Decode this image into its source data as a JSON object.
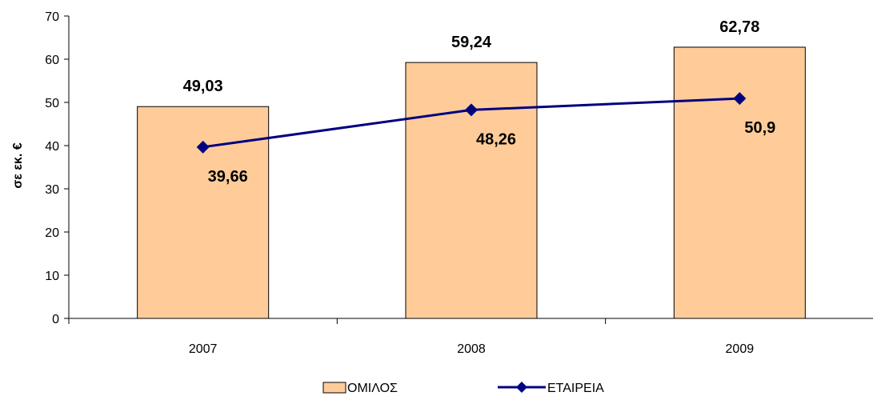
{
  "chart_data": {
    "type": "bar",
    "categories": [
      "2007",
      "2008",
      "2009"
    ],
    "series": [
      {
        "name": "ΟΜΙΛΟΣ",
        "kind": "bar",
        "values": [
          49.03,
          59.24,
          62.78
        ],
        "labels": [
          "49,03",
          "59,24",
          "62,78"
        ],
        "color": "#FFCC99"
      },
      {
        "name": "ΕΤΑΙΡΕΙΑ",
        "kind": "line",
        "values": [
          39.66,
          48.26,
          50.9
        ],
        "labels": [
          "39,66",
          "48,26",
          "50,9"
        ],
        "color": "#000080"
      }
    ],
    "ylabel": "σε εκ. €",
    "ylim": [
      0,
      70
    ],
    "yticks": [
      "0",
      "10",
      "20",
      "30",
      "40",
      "50",
      "60",
      "70"
    ],
    "grid": false,
    "legend_position": "bottom"
  }
}
